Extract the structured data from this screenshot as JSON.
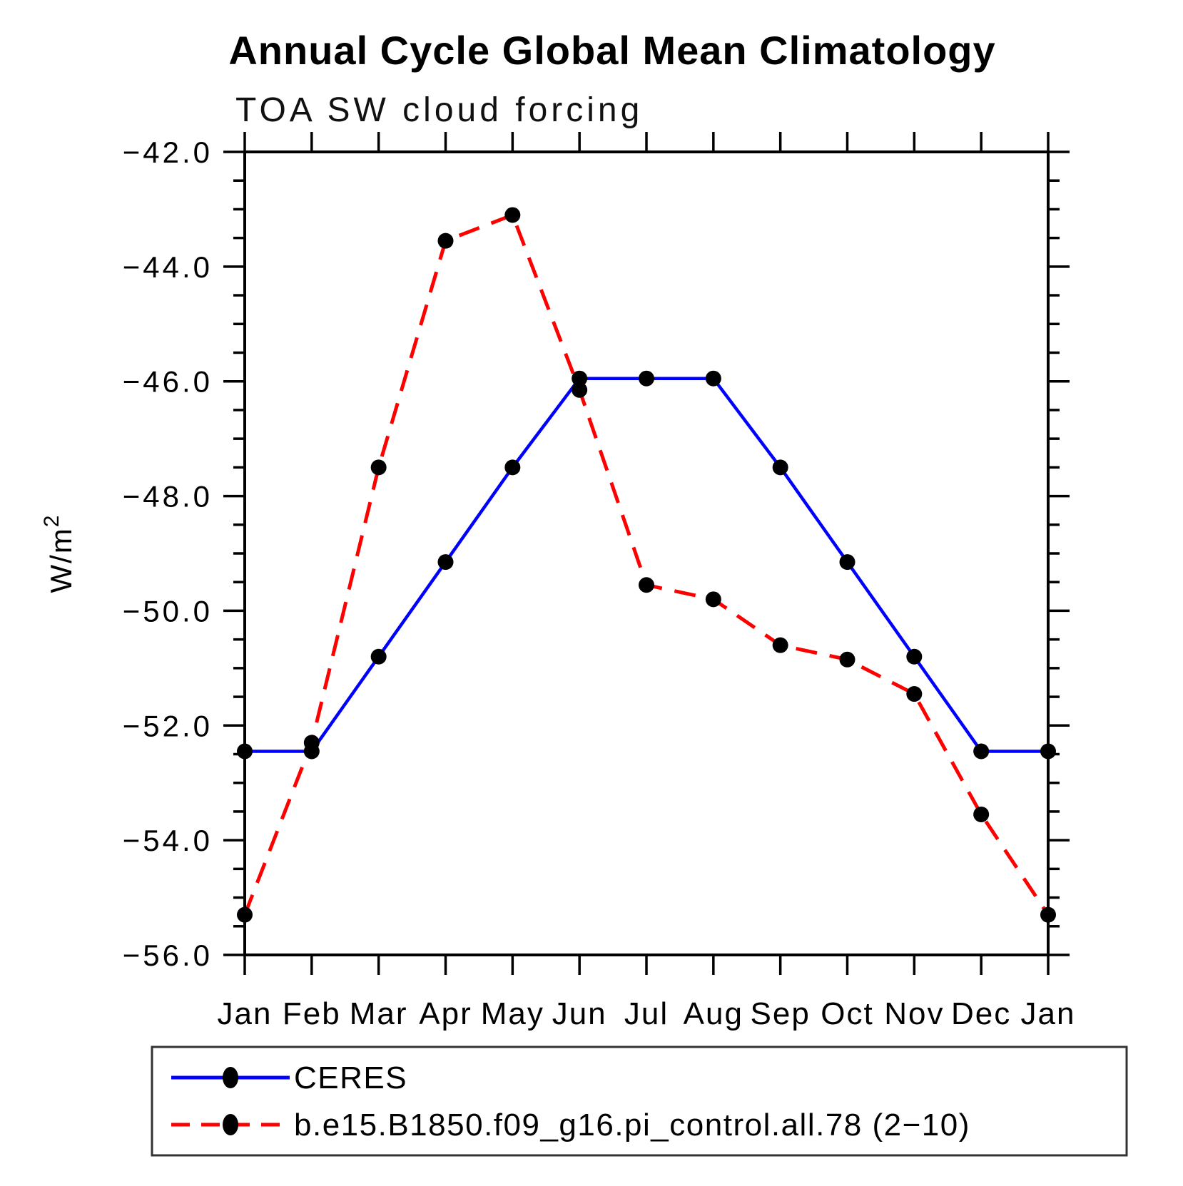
{
  "title": "Annual Cycle Global Mean Climatology",
  "subtitle": "TOA SW cloud forcing",
  "chart_data": {
    "type": "line",
    "x_categories": [
      "Jan",
      "Feb",
      "Mar",
      "Apr",
      "May",
      "Jun",
      "Jul",
      "Aug",
      "Sep",
      "Oct",
      "Nov",
      "Dec",
      "Jan"
    ],
    "ylabel": "W/m²",
    "ylim": [
      -56.0,
      -42.0
    ],
    "y_major_step": 2.0,
    "y_minor_step": 0.5,
    "grid": false,
    "legend_position": "bottom",
    "marker": {
      "shape": "circle",
      "color": "#000000"
    },
    "series": [
      {
        "name": "CERES",
        "color": "#0000ff",
        "line_style": "solid",
        "values": [
          -52.45,
          -52.45,
          -50.8,
          -49.15,
          -47.5,
          -45.95,
          -45.95,
          -45.95,
          -47.5,
          -49.15,
          -50.8,
          -52.45,
          -52.45
        ]
      },
      {
        "name": "b.e15.B1850.f09_g16.pi_control.all.78 (2−10)",
        "color": "#ff0000",
        "line_style": "dashed",
        "values": [
          -55.3,
          -52.3,
          -47.5,
          -43.55,
          -43.1,
          -46.15,
          -49.55,
          -49.8,
          -50.6,
          -50.85,
          -51.45,
          -53.55,
          -55.3
        ]
      }
    ]
  }
}
